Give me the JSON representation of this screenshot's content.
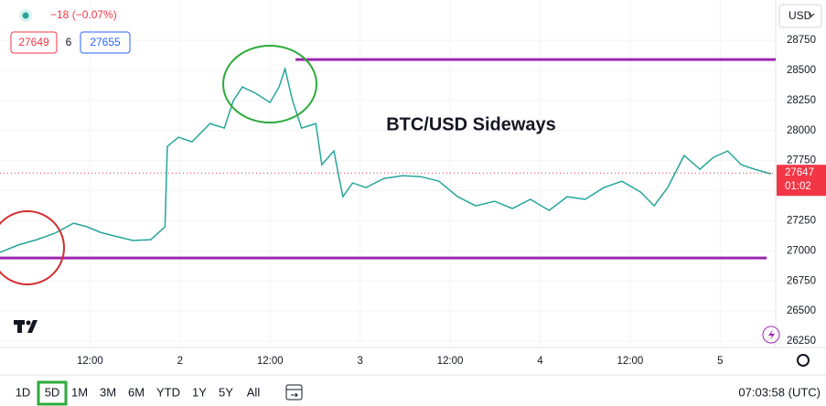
{
  "header": {
    "change": "−18 (−0.07%)",
    "bid": "27649",
    "spread": "6",
    "ask": "27655",
    "currency": "USD"
  },
  "chart_data": {
    "type": "line",
    "annotation": "BTC/USD Sideways",
    "color": "#26a69a",
    "x": [
      0,
      2.4,
      4.9,
      7.3,
      9.8,
      11.6,
      13.4,
      15.2,
      17.7,
      20.1,
      22,
      22.3,
      23.8,
      25.6,
      28,
      29.9,
      31.1,
      32.3,
      34.1,
      36,
      37.2,
      38,
      39,
      40.2,
      42.1,
      42.9,
      44.5,
      45.7,
      47,
      48.8,
      51.2,
      53.7,
      56.1,
      58.5,
      61,
      63.4,
      65.9,
      68.3,
      70.7,
      73.2,
      75.6,
      78,
      80.5,
      82.9,
      85.4,
      87.2,
      89,
      91.2,
      93.3,
      95.1,
      97,
      98.8,
      100.6,
      102.8
    ],
    "values": [
      26987,
      27048,
      27093,
      27146,
      27230,
      27200,
      27154,
      27124,
      27086,
      27093,
      27200,
      27868,
      27944,
      27906,
      28058,
      28020,
      28248,
      28362,
      28309,
      28233,
      28362,
      28514,
      28248,
      28020,
      28058,
      27716,
      27830,
      27450,
      27564,
      27526,
      27602,
      27625,
      27617,
      27579,
      27450,
      27374,
      27412,
      27352,
      27428,
      27336,
      27450,
      27428,
      27526,
      27579,
      27488,
      27374,
      27526,
      27792,
      27678,
      27777,
      27830,
      27716,
      27678,
      27640
    ],
    "xlim": [
      0,
      103.4
    ],
    "ylim": [
      26197,
      29085
    ],
    "xticks": [
      {
        "value": 12,
        "label": "12:00"
      },
      {
        "value": 24,
        "label": "2"
      },
      {
        "value": 36,
        "label": "12:00"
      },
      {
        "value": 48,
        "label": "3"
      },
      {
        "value": 60,
        "label": "12:00"
      },
      {
        "value": 72,
        "label": "4"
      },
      {
        "value": 84,
        "label": "12:00"
      },
      {
        "value": 96,
        "label": "5"
      }
    ],
    "yticks": [
      26250,
      26500,
      26750,
      27000,
      27250,
      27500,
      27750,
      28000,
      28250,
      28500,
      28750
    ],
    "grid": true,
    "hlines": [
      {
        "y": 28590,
        "x": [
          39.4,
          103.4
        ],
        "color": "#9c27b0"
      },
      {
        "y": 26941,
        "x": [
          0,
          102.2
        ],
        "color": "#9c27b0"
      }
    ],
    "last_price": 27647,
    "countdown": "01:02"
  },
  "toolbar": {
    "ranges": [
      "1D",
      "5D",
      "1M",
      "3M",
      "6M",
      "YTD",
      "1Y",
      "5Y",
      "All"
    ],
    "clock": "07:03:58 (UTC)"
  }
}
